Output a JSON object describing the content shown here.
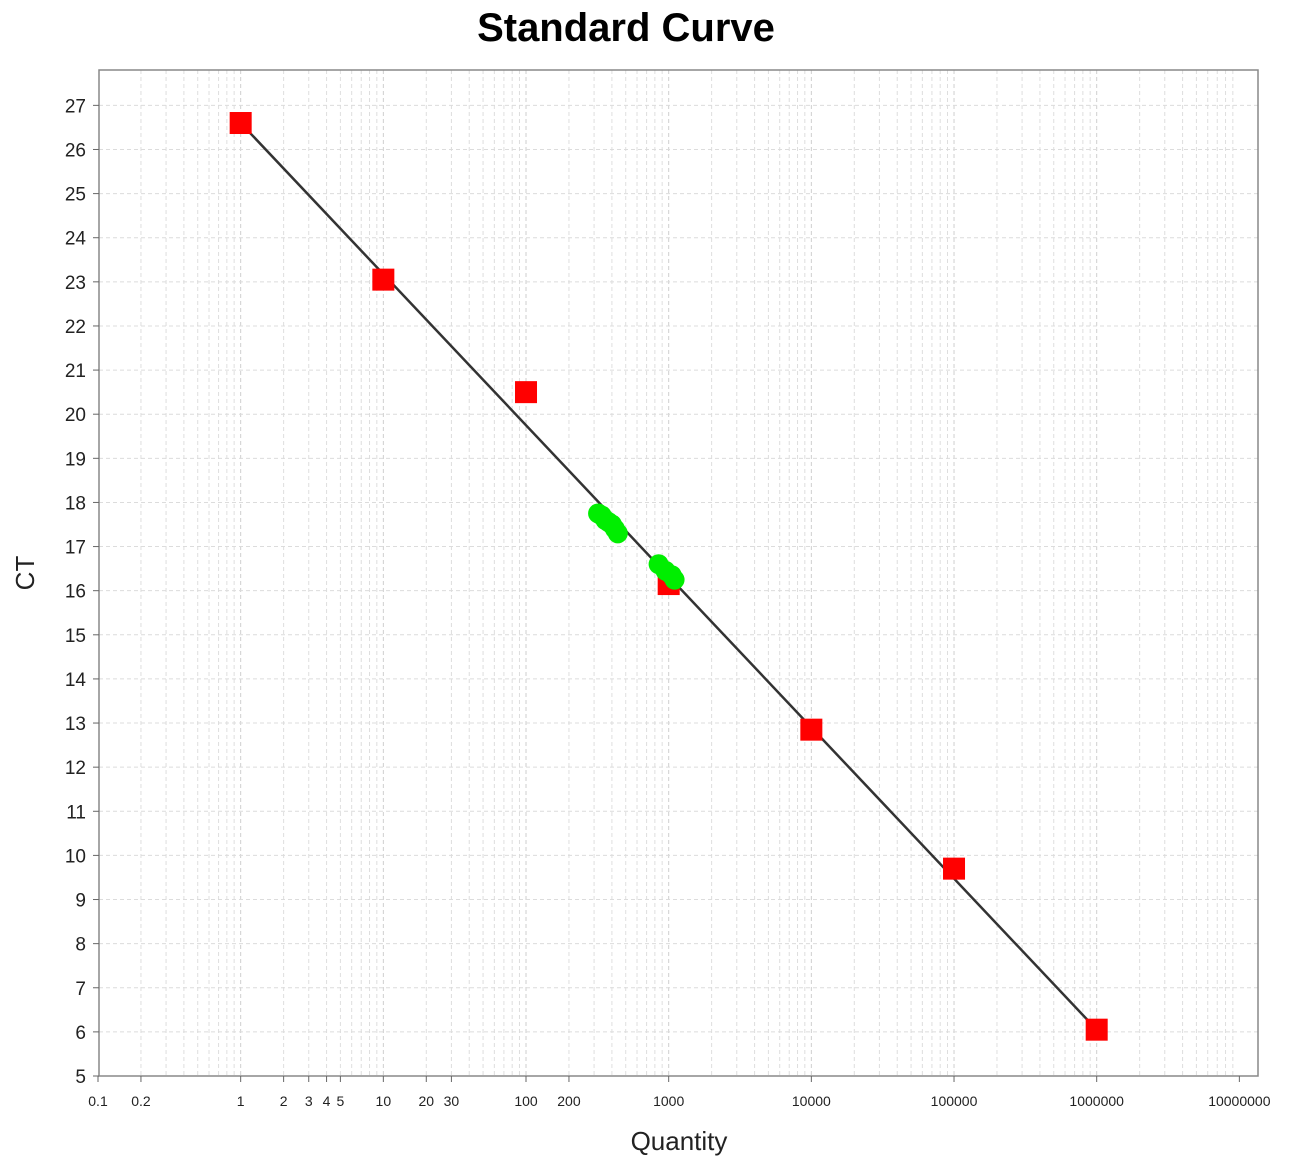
{
  "chart_data": {
    "type": "scatter",
    "title": "Standard Curve",
    "xlabel": "Quantity",
    "ylabel": "CT",
    "xscale": "log",
    "xlim": [
      0.1,
      10000000
    ],
    "ylim": [
      5,
      27.6
    ],
    "grid": true,
    "x_ticks": [
      {
        "value": 0.1,
        "label": "0.1"
      },
      {
        "value": 0.2,
        "label": "0.2"
      },
      {
        "value": 1,
        "label": "1"
      },
      {
        "value": 2,
        "label": "2"
      },
      {
        "value": 3,
        "label": "3"
      },
      {
        "value": 4,
        "label": "4"
      },
      {
        "value": 5,
        "label": "5"
      },
      {
        "value": 10,
        "label": "10"
      },
      {
        "value": 20,
        "label": "20"
      },
      {
        "value": 30,
        "label": "30"
      },
      {
        "value": 100,
        "label": "100"
      },
      {
        "value": 200,
        "label": "200"
      },
      {
        "value": 1000,
        "label": "1000"
      },
      {
        "value": 10000,
        "label": "10000"
      },
      {
        "value": 100000,
        "label": "100000"
      },
      {
        "value": 1000000,
        "label": "1000000"
      },
      {
        "value": 10000000,
        "label": "10000000"
      }
    ],
    "y_ticks": [
      5,
      6,
      7,
      8,
      9,
      10,
      11,
      12,
      13,
      14,
      15,
      16,
      17,
      18,
      19,
      20,
      21,
      22,
      23,
      24,
      25,
      26,
      27
    ],
    "series": [
      {
        "role": "standards",
        "color": "#ff0000",
        "marker": "square",
        "points": [
          {
            "x": 1,
            "y": 26.6
          },
          {
            "x": 10,
            "y": 23.05
          },
          {
            "x": 100,
            "y": 20.5
          },
          {
            "x": 1000,
            "y": 16.15
          },
          {
            "x": 10000,
            "y": 12.85
          },
          {
            "x": 100000,
            "y": 9.7
          },
          {
            "x": 1000000,
            "y": 6.05
          }
        ]
      },
      {
        "role": "unknowns",
        "color": "#00ee00",
        "marker": "circle",
        "points": [
          {
            "x": 320,
            "y": 17.75
          },
          {
            "x": 340,
            "y": 17.7
          },
          {
            "x": 360,
            "y": 17.6
          },
          {
            "x": 380,
            "y": 17.55
          },
          {
            "x": 400,
            "y": 17.5
          },
          {
            "x": 420,
            "y": 17.4
          },
          {
            "x": 440,
            "y": 17.3
          },
          {
            "x": 850,
            "y": 16.6
          },
          {
            "x": 950,
            "y": 16.45
          },
          {
            "x": 1050,
            "y": 16.35
          },
          {
            "x": 1100,
            "y": 16.25
          }
        ]
      }
    ],
    "fit_line": {
      "color": "#333333",
      "points": [
        {
          "x": 1,
          "y": 26.6
        },
        {
          "x": 1000000,
          "y": 6.05
        }
      ]
    }
  }
}
